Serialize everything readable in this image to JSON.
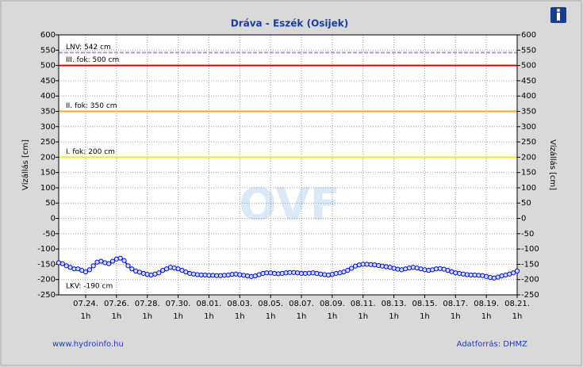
{
  "chart_data": {
    "type": "line",
    "title": "Dráva - Eszék (Osijek)",
    "watermark": "OVF",
    "ylabel": "Vízállás [cm]",
    "y2label": "Vízállás [cm]",
    "ylim": [
      -250,
      600
    ],
    "yticks": [
      -250,
      -200,
      -150,
      -100,
      -50,
      0,
      50,
      100,
      150,
      200,
      250,
      300,
      350,
      400,
      450,
      500,
      550,
      600
    ],
    "y2lim": [
      -250,
      600
    ],
    "y2ticks": [
      -250,
      -200,
      -150,
      -100,
      -50,
      0,
      50,
      100,
      150,
      200,
      250,
      300,
      350,
      400,
      450,
      500,
      550,
      600
    ],
    "grid": true,
    "categories": [
      null,
      null,
      null,
      null,
      null,
      null,
      null,
      "07.24.\n1h",
      null,
      null,
      null,
      null,
      null,
      null,
      null,
      "07.26.\n1h",
      null,
      null,
      null,
      null,
      null,
      null,
      null,
      "07.28.\n1h",
      null,
      null,
      null,
      null,
      null,
      null,
      null,
      "07.30.\n1h",
      null,
      null,
      null,
      null,
      null,
      null,
      null,
      "08.01.\n1h",
      null,
      null,
      null,
      null,
      null,
      null,
      null,
      "08.03.\n1h",
      null,
      null,
      null,
      null,
      null,
      null,
      null,
      "08.05.\n1h",
      null,
      null,
      null,
      null,
      null,
      null,
      null,
      "08.07.\n1h",
      null,
      null,
      null,
      null,
      null,
      null,
      null,
      "08.09.\n1h",
      null,
      null,
      null,
      null,
      null,
      null,
      null,
      "08.11.\n1h",
      null,
      null,
      null,
      null,
      null,
      null,
      null,
      "08.13.\n1h",
      null,
      null,
      null,
      null,
      null,
      null,
      null,
      "08.15.\n1h",
      null,
      null,
      null,
      null,
      null,
      null,
      null,
      "08.17.\n1h",
      null,
      null,
      null,
      null,
      null,
      null,
      null,
      "08.19.\n1h",
      null,
      null,
      null,
      null,
      null,
      null,
      null,
      "08.21.\n1h"
    ],
    "series": [
      {
        "color": "#0000ee",
        "values": [
          -145,
          -148,
          -155,
          -160,
          -165,
          -165,
          -170,
          -175,
          -168,
          -155,
          -143,
          -140,
          -145,
          -148,
          -140,
          -133,
          -130,
          -138,
          -155,
          -165,
          -172,
          -176,
          -180,
          -183,
          -185,
          -182,
          -178,
          -170,
          -165,
          -160,
          -162,
          -165,
          -170,
          -175,
          -180,
          -182,
          -184,
          -185,
          -185,
          -186,
          -186,
          -187,
          -187,
          -186,
          -185,
          -183,
          -182,
          -184,
          -186,
          -188,
          -190,
          -188,
          -184,
          -180,
          -178,
          -178,
          -180,
          -181,
          -180,
          -178,
          -177,
          -177,
          -178,
          -180,
          -180,
          -179,
          -178,
          -180,
          -182,
          -184,
          -185,
          -183,
          -180,
          -178,
          -175,
          -170,
          -163,
          -156,
          -152,
          -150,
          -150,
          -151,
          -152,
          -154,
          -156,
          -158,
          -160,
          -163,
          -166,
          -168,
          -165,
          -162,
          -160,
          -162,
          -165,
          -168,
          -170,
          -168,
          -165,
          -164,
          -166,
          -170,
          -174,
          -178,
          -180,
          -182,
          -184,
          -185,
          -185,
          -186,
          -187,
          -190,
          -193,
          -195,
          -192,
          -188,
          -185,
          -182,
          -178,
          -172
        ]
      }
    ],
    "reference_lines": [
      {
        "label": "LNV: 542 cm",
        "value": 542,
        "color": "#c58ae0"
      },
      {
        "label": "III. fok: 500 cm",
        "value": 500,
        "color": "#dd0000"
      },
      {
        "label": "II. fok: 350 cm",
        "value": 350,
        "color": "#f5a623"
      },
      {
        "label": "I. fok: 200 cm",
        "value": 200,
        "color": "#eeee22"
      },
      {
        "label": "LKV: -190 cm",
        "value": -190
      }
    ],
    "footer_left": "www.hydroinfo.hu",
    "footer_right": "Adatforrás: DHMZ"
  }
}
